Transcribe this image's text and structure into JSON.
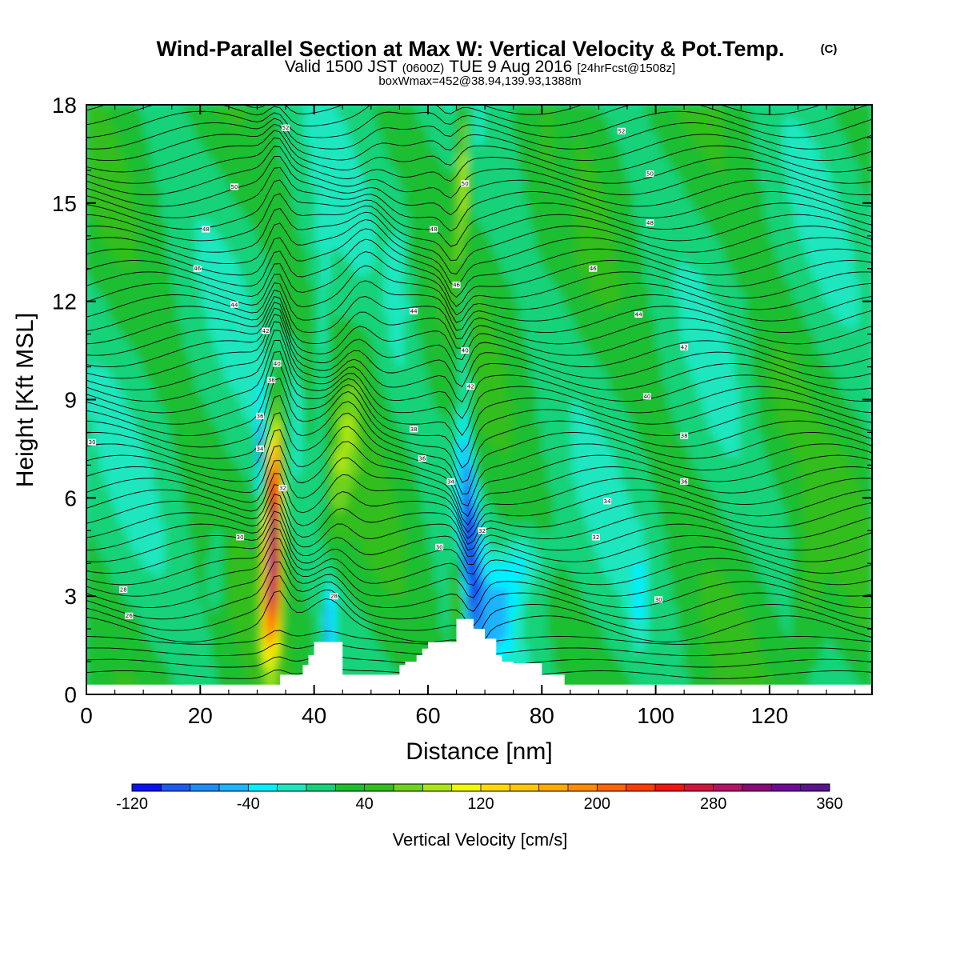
{
  "chart_data": {
    "type": "heatmap",
    "title": "Wind-Parallel Section at Max W: Vertical Velocity & Pot.Temp.",
    "title_mark": "(C)",
    "subtitle": {
      "a": "Valid 1500 JST",
      "b": "(0600Z)",
      "c": "TUE 9 Aug 2016",
      "d": "[24hrFcst@1508z]"
    },
    "subtitle2": "boxWmax=452@38.94,139.93,1388m",
    "xlabel": "Distance [nm]",
    "ylabel": "Height [Kft MSL]",
    "xlim": [
      0,
      138
    ],
    "ylim": [
      0,
      18
    ],
    "x_ticks": [
      0,
      20,
      40,
      60,
      80,
      100,
      120
    ],
    "y_ticks": [
      0,
      3,
      6,
      9,
      12,
      15,
      18
    ],
    "colorbar": {
      "label": "Vertical Velocity [cm/s]",
      "min": -120,
      "max": 360,
      "step": 20,
      "tick_values": [
        -120,
        -40,
        40,
        120,
        200,
        280,
        360
      ],
      "tick_labels": [
        "-120",
        "-40",
        "40",
        "120",
        "200",
        "280",
        "360"
      ],
      "colors": [
        "#0a14f0",
        "#1e5af0",
        "#1e8cf5",
        "#1eb4ff",
        "#00f0ff",
        "#1ee6be",
        "#14d278",
        "#1ebe32",
        "#32be1e",
        "#6ed21e",
        "#aae614",
        "#f0fa00",
        "#ffdc00",
        "#ffc800",
        "#ffaa00",
        "#ff8c00",
        "#ff6400",
        "#ff3c00",
        "#f01414",
        "#d2143c",
        "#b41464",
        "#8c0a78",
        "#6e0a96",
        "#5a148c"
      ]
    },
    "features": [
      {
        "kind": "updraft",
        "x_center": 33,
        "z_range": [
          0.5,
          10.3
        ],
        "peak_cm_s": 300
      },
      {
        "kind": "updraft",
        "x_center": 45,
        "z_range": [
          4,
          11
        ],
        "peak_cm_s": 60
      },
      {
        "kind": "updraft",
        "x_center": 66,
        "z_range": [
          3,
          18
        ],
        "peak_cm_s": 120
      },
      {
        "kind": "downdraft",
        "x_center": 67,
        "z_range": [
          1,
          14
        ],
        "peak_cm_s": -100
      },
      {
        "kind": "downdraft",
        "x_center": 43,
        "z_range": [
          0.5,
          4
        ],
        "peak_cm_s": -80
      },
      {
        "kind": "downdraft",
        "x_center": 31,
        "z_range": [
          5,
          9
        ],
        "peak_cm_s": -60
      }
    ],
    "terrain": {
      "x": [
        0,
        34,
        34,
        38,
        38,
        39,
        39,
        40,
        40,
        45,
        45,
        55,
        55,
        56,
        56,
        58,
        58,
        59,
        59,
        60,
        60,
        65,
        65,
        68,
        68,
        70,
        70,
        72,
        72,
        73,
        73,
        75,
        75,
        80,
        80,
        84,
        84,
        138
      ],
      "z": [
        0.3,
        0.3,
        0.6,
        0.6,
        0.9,
        0.9,
        1.2,
        1.2,
        1.6,
        1.6,
        0.6,
        0.6,
        0.9,
        0.9,
        1.0,
        1.0,
        1.2,
        1.2,
        1.4,
        1.4,
        1.6,
        1.6,
        2.3,
        2.3,
        2.0,
        2.0,
        1.7,
        1.7,
        1.2,
        1.2,
        1.0,
        1.0,
        0.95,
        0.95,
        0.6,
        0.6,
        0.3,
        0.3
      ]
    },
    "contours": {
      "variable": "Potential temperature",
      "labels": [
        {
          "x": 35,
          "z": 17.3,
          "text": "52"
        },
        {
          "x": 26,
          "z": 15.5,
          "text": "50"
        },
        {
          "x": 21,
          "z": 14.2,
          "text": "48"
        },
        {
          "x": 19.5,
          "z": 13.0,
          "text": "46"
        },
        {
          "x": 26,
          "z": 11.9,
          "text": "44"
        },
        {
          "x": 31.5,
          "z": 11.1,
          "text": "42"
        },
        {
          "x": 33.5,
          "z": 10.1,
          "text": "40"
        },
        {
          "x": 32.5,
          "z": 9.6,
          "text": "38"
        },
        {
          "x": 30.5,
          "z": 8.5,
          "text": "36"
        },
        {
          "x": 30.5,
          "z": 7.5,
          "text": "34"
        },
        {
          "x": 34.5,
          "z": 6.3,
          "text": "32"
        },
        {
          "x": 27,
          "z": 4.8,
          "text": "30"
        },
        {
          "x": 6.5,
          "z": 3.2,
          "text": "28"
        },
        {
          "x": 7.5,
          "z": 2.4,
          "text": "26"
        },
        {
          "x": 1,
          "z": 7.7,
          "text": "30"
        },
        {
          "x": 57.5,
          "z": 8.1,
          "text": "38"
        },
        {
          "x": 59,
          "z": 7.2,
          "text": "36"
        },
        {
          "x": 64,
          "z": 6.5,
          "text": "34"
        },
        {
          "x": 62,
          "z": 4.5,
          "text": "30"
        },
        {
          "x": 43.5,
          "z": 3.0,
          "text": "28"
        },
        {
          "x": 57.5,
          "z": 11.7,
          "text": "44"
        },
        {
          "x": 61,
          "z": 14.2,
          "text": "48"
        },
        {
          "x": 66.5,
          "z": 15.6,
          "text": "50"
        },
        {
          "x": 65,
          "z": 12.5,
          "text": "46"
        },
        {
          "x": 66.5,
          "z": 10.5,
          "text": "40"
        },
        {
          "x": 67.5,
          "z": 9.4,
          "text": "42"
        },
        {
          "x": 69.5,
          "z": 5.0,
          "text": "32"
        },
        {
          "x": 94,
          "z": 17.2,
          "text": "52"
        },
        {
          "x": 99,
          "z": 15.9,
          "text": "50"
        },
        {
          "x": 99,
          "z": 14.4,
          "text": "48"
        },
        {
          "x": 89,
          "z": 13.0,
          "text": "46"
        },
        {
          "x": 97,
          "z": 11.6,
          "text": "44"
        },
        {
          "x": 105,
          "z": 10.6,
          "text": "42"
        },
        {
          "x": 98.5,
          "z": 9.1,
          "text": "40"
        },
        {
          "x": 105,
          "z": 7.9,
          "text": "38"
        },
        {
          "x": 105,
          "z": 6.5,
          "text": "36"
        },
        {
          "x": 91.5,
          "z": 5.9,
          "text": "34"
        },
        {
          "x": 89.5,
          "z": 4.8,
          "text": "32"
        },
        {
          "x": 100.5,
          "z": 2.9,
          "text": "30"
        }
      ]
    },
    "grid": false,
    "legend": "colorbar-bottom"
  }
}
